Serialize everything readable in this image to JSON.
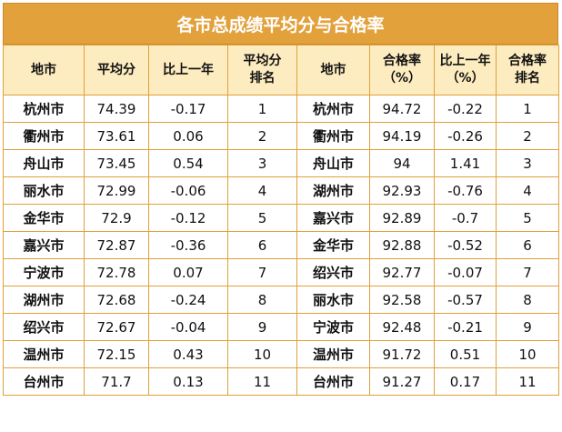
{
  "title": "各市总成绩平均分与合格率",
  "headers": {
    "left_city": "地市",
    "avg_score": "平均分",
    "avg_yoy": "比上一年",
    "avg_rank_1": "平均分",
    "avg_rank_2": "排名",
    "right_city": "地市",
    "pass_rate_1": "合格率",
    "pass_rate_2": "（%）",
    "pass_yoy_1": "比上一年",
    "pass_yoy_2": "（%）",
    "pass_rank_1": "合格率",
    "pass_rank_2": "排名"
  },
  "rows": [
    {
      "city_a": "杭州市",
      "avg": "74.39",
      "avg_diff": "-0.17",
      "avg_rank": "1",
      "city_b": "杭州市",
      "rate": "94.72",
      "rate_diff": "-0.22",
      "rate_rank": "1"
    },
    {
      "city_a": "衢州市",
      "avg": "73.61",
      "avg_diff": "0.06",
      "avg_rank": "2",
      "city_b": "衢州市",
      "rate": "94.19",
      "rate_diff": "-0.26",
      "rate_rank": "2"
    },
    {
      "city_a": "舟山市",
      "avg": "73.45",
      "avg_diff": "0.54",
      "avg_rank": "3",
      "city_b": "舟山市",
      "rate": "94",
      "rate_diff": "1.41",
      "rate_rank": "3"
    },
    {
      "city_a": "丽水市",
      "avg": "72.99",
      "avg_diff": "-0.06",
      "avg_rank": "4",
      "city_b": "湖州市",
      "rate": "92.93",
      "rate_diff": "-0.76",
      "rate_rank": "4"
    },
    {
      "city_a": "金华市",
      "avg": "72.9",
      "avg_diff": "-0.12",
      "avg_rank": "5",
      "city_b": "嘉兴市",
      "rate": "92.89",
      "rate_diff": "-0.7",
      "rate_rank": "5"
    },
    {
      "city_a": "嘉兴市",
      "avg": "72.87",
      "avg_diff": "-0.36",
      "avg_rank": "6",
      "city_b": "金华市",
      "rate": "92.88",
      "rate_diff": "-0.52",
      "rate_rank": "6"
    },
    {
      "city_a": "宁波市",
      "avg": "72.78",
      "avg_diff": "0.07",
      "avg_rank": "7",
      "city_b": "绍兴市",
      "rate": "92.77",
      "rate_diff": "-0.07",
      "rate_rank": "7"
    },
    {
      "city_a": "湖州市",
      "avg": "72.68",
      "avg_diff": "-0.24",
      "avg_rank": "8",
      "city_b": "丽水市",
      "rate": "92.58",
      "rate_diff": "-0.57",
      "rate_rank": "8"
    },
    {
      "city_a": "绍兴市",
      "avg": "72.67",
      "avg_diff": "-0.04",
      "avg_rank": "9",
      "city_b": "宁波市",
      "rate": "92.48",
      "rate_diff": "-0.21",
      "rate_rank": "9"
    },
    {
      "city_a": "温州市",
      "avg": "72.15",
      "avg_diff": "0.43",
      "avg_rank": "10",
      "city_b": "温州市",
      "rate": "91.72",
      "rate_diff": "0.51",
      "rate_rank": "10"
    },
    {
      "city_a": "台州市",
      "avg": "71.7",
      "avg_diff": "0.13",
      "avg_rank": "11",
      "city_b": "台州市",
      "rate": "91.27",
      "rate_diff": "0.17",
      "rate_rank": "11"
    }
  ]
}
